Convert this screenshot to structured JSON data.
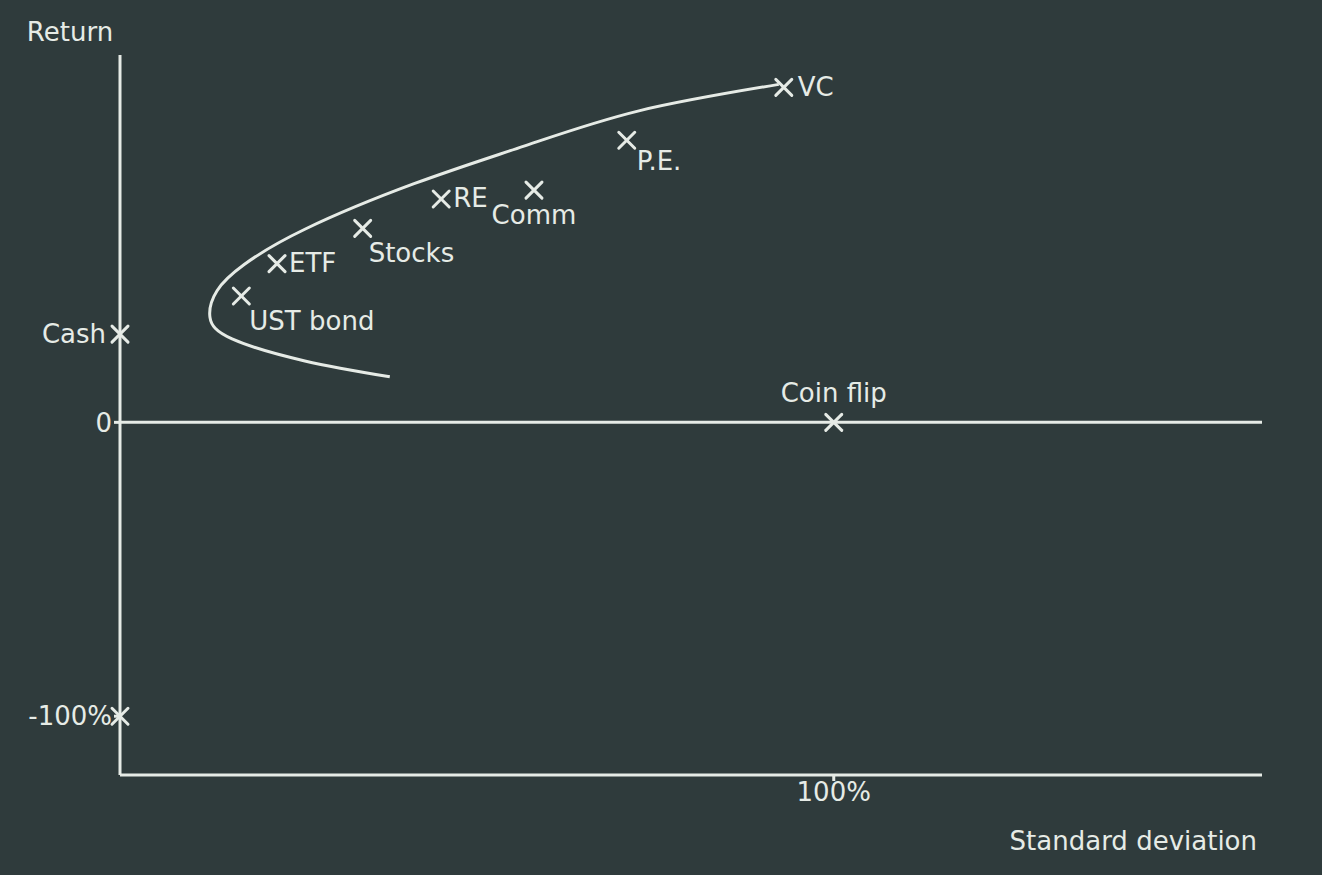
{
  "chart_data": {
    "type": "scatter",
    "x_label": "Standard deviation",
    "y_label": "Return",
    "xlim": [
      0,
      160
    ],
    "ylim": [
      -120,
      125
    ],
    "xticks": [
      {
        "value": 100,
        "label": "100%"
      }
    ],
    "yticks": [
      {
        "value": -100,
        "label": "-100%"
      },
      0
    ],
    "color": "#e6ebe6",
    "marker": "x",
    "points": {
      "labels": [
        "Cash",
        "UST bond",
        "ETF",
        "Stocks",
        "RE",
        "Comm",
        "P.E.",
        "VC",
        "Coin flip",
        null
      ],
      "x": [
        0,
        17,
        22,
        34,
        45,
        58,
        71,
        93,
        100,
        0
      ],
      "y": [
        30,
        43,
        54,
        66,
        76,
        79,
        96,
        114,
        0,
        -100
      ]
    },
    "frontier": {
      "x": [
        37.8,
        25.9,
        15.7,
        12.6,
        13.6,
        17.4,
        25.9,
        41.2,
        56.6,
        72.7,
        92.3
      ],
      "y": [
        15.5,
        20.9,
        28.4,
        35.8,
        44.8,
        53.7,
        65.7,
        81.2,
        94,
        106,
        115
      ]
    }
  }
}
